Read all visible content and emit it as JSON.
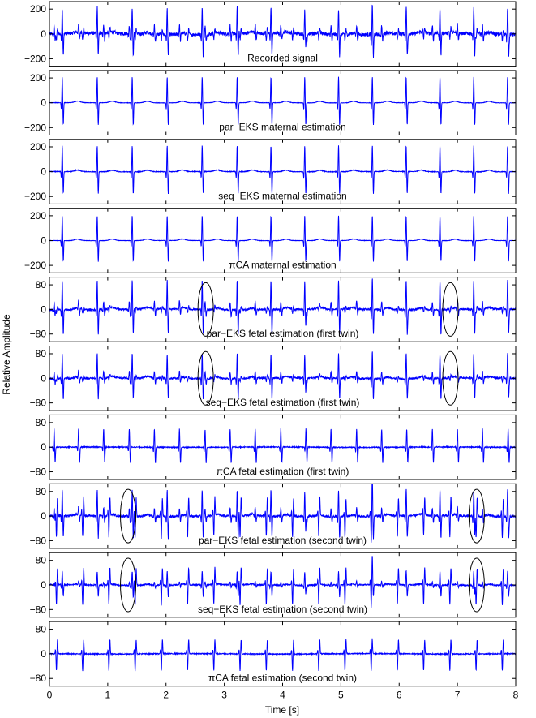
{
  "chart_data": {
    "type": "line",
    "xlabel": "Time [s]",
    "ylabel": "Relative Amplitude",
    "xlim": [
      0,
      8
    ],
    "xticks": [
      0,
      1,
      2,
      3,
      4,
      5,
      6,
      7,
      8
    ],
    "line_color": "#0000ff",
    "panels": [
      {
        "title": "Recorded signal",
        "ylim": [
          -260,
          260
        ],
        "yticks": [
          -200,
          0,
          200
        ],
        "maternal_amp": 210,
        "fetal1_amp": 70,
        "fetal2_amp": 50,
        "noise": 14,
        "ellipses": []
      },
      {
        "title": "par−EKS maternal estimation",
        "ylim": [
          -260,
          260
        ],
        "yticks": [
          -200,
          0,
          200
        ],
        "maternal_amp": 210,
        "fetal1_amp": 0,
        "fetal2_amp": 0,
        "noise": 1.5,
        "ellipses": []
      },
      {
        "title": "seq−EKS maternal estimation",
        "ylim": [
          -260,
          260
        ],
        "yticks": [
          -200,
          0,
          200
        ],
        "maternal_amp": 210,
        "fetal1_amp": 0,
        "fetal2_amp": 0,
        "noise": 2.5,
        "ellipses": []
      },
      {
        "title": "πCA maternal estimation",
        "ylim": [
          -260,
          260
        ],
        "yticks": [
          -200,
          0,
          200
        ],
        "maternal_amp": 200,
        "fetal1_amp": 0,
        "fetal2_amp": 0,
        "noise": 1.5,
        "ellipses": []
      },
      {
        "title": "par−EKS fetal estimation (first twin)",
        "ylim": [
          -105,
          105
        ],
        "yticks": [
          -80,
          0,
          80
        ],
        "maternal_amp": 95,
        "fetal1_amp": 25,
        "fetal2_amp": 12,
        "noise": 3,
        "ellipses": [
          2.68,
          6.88
        ]
      },
      {
        "title": "seq−EKS fetal estimation (first twin)",
        "ylim": [
          -105,
          105
        ],
        "yticks": [
          -80,
          0,
          80
        ],
        "maternal_amp": 80,
        "fetal1_amp": 22,
        "fetal2_amp": 10,
        "noise": 3,
        "ellipses": [
          2.68,
          6.88
        ]
      },
      {
        "title": "πCA fetal estimation (first twin)",
        "ylim": [
          -105,
          105
        ],
        "yticks": [
          -80,
          0,
          80
        ],
        "maternal_amp": 0,
        "fetal1_amp": 60,
        "fetal2_amp": 0,
        "noise": 1.5,
        "ellipses": []
      },
      {
        "title": "par−EKS fetal estimation (second twin)",
        "ylim": [
          -105,
          105
        ],
        "yticks": [
          -80,
          0,
          80
        ],
        "maternal_amp": 85,
        "fetal1_amp": 25,
        "fetal2_amp": 70,
        "noise": 3.5,
        "ellipses": [
          1.35,
          7.33
        ]
      },
      {
        "title": "seq−EKS fetal estimation (second twin)",
        "ylim": [
          -105,
          105
        ],
        "yticks": [
          -80,
          0,
          80
        ],
        "maternal_amp": 45,
        "fetal1_amp": 10,
        "fetal2_amp": 65,
        "noise": 2,
        "ellipses": [
          1.35,
          7.33
        ]
      },
      {
        "title": "πCA fetal estimation (second twin)",
        "ylim": [
          -105,
          105
        ],
        "yticks": [
          -80,
          0,
          80
        ],
        "maternal_amp": 0,
        "fetal1_amp": 0,
        "fetal2_amp": 55,
        "noise": 1.5,
        "ellipses": []
      }
    ],
    "maternal_beats": [
      0.22,
      0.82,
      1.42,
      2.02,
      2.62,
      3.22,
      3.8,
      4.38,
      4.96,
      5.54,
      6.12,
      6.7,
      7.28,
      7.86
    ],
    "fetal1_beats": [
      0.08,
      0.5,
      0.93,
      1.37,
      1.8,
      2.23,
      2.67,
      3.1,
      3.53,
      3.97,
      4.4,
      4.83,
      5.27,
      5.7,
      6.13,
      6.57,
      7.0,
      7.43,
      7.87
    ],
    "fetal2_beats": [
      0.12,
      0.57,
      1.02,
      1.47,
      1.92,
      2.37,
      2.82,
      3.27,
      3.72,
      4.17,
      4.62,
      5.07,
      5.52,
      5.97,
      6.42,
      6.87,
      7.32,
      7.77
    ]
  }
}
